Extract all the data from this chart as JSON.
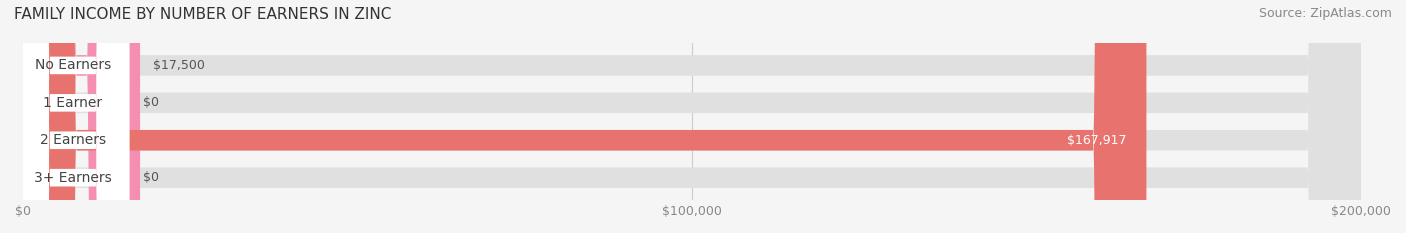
{
  "title": "FAMILY INCOME BY NUMBER OF EARNERS IN ZINC",
  "source": "Source: ZipAtlas.com",
  "categories": [
    "No Earners",
    "1 Earner",
    "2 Earners",
    "3+ Earners"
  ],
  "values": [
    17500,
    0,
    167917,
    0
  ],
  "bar_colors": [
    "#f48fb1",
    "#f5c99a",
    "#e8736e",
    "#a8c8e8"
  ],
  "label_bg_colors": [
    "#f48fb1",
    "#f5c99a",
    "#e8736e",
    "#a8c8e8"
  ],
  "value_labels": [
    "$17,500",
    "$0",
    "$167,917",
    "$0"
  ],
  "xlim": [
    0,
    200000
  ],
  "xtick_values": [
    0,
    100000,
    200000
  ],
  "xtick_labels": [
    "$0",
    "$100,000",
    "$200,000"
  ],
  "bar_height": 0.55,
  "background_color": "#f5f5f5",
  "bar_bg_color": "#e8e8e8",
  "title_fontsize": 11,
  "source_fontsize": 9,
  "label_fontsize": 10,
  "value_fontsize": 9
}
